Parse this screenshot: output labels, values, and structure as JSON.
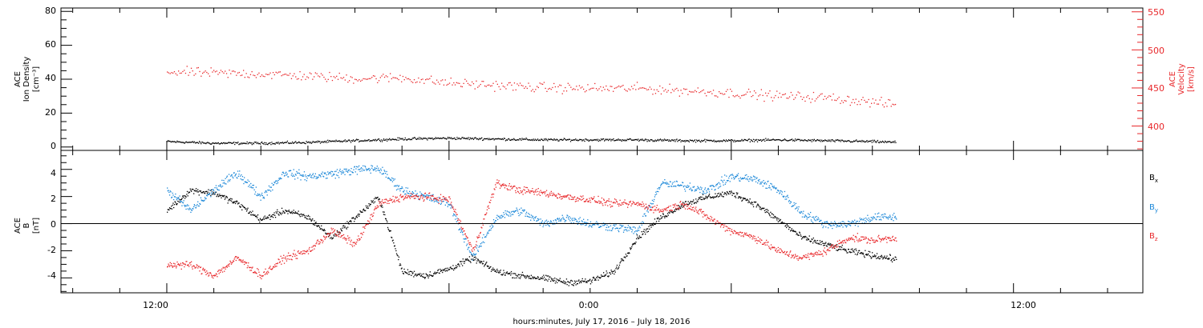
{
  "chart_data": [
    {
      "type": "scatter",
      "panel": "plasma",
      "ylabel_lines": [
        "ACE",
        "Ion Density",
        "[cm⁻³]"
      ],
      "ylabel2_lines": [
        "ACE",
        "Velocity",
        "[km/s]"
      ],
      "ylim": [
        -2,
        82
      ],
      "y_ticks": [
        "0",
        "20",
        "40",
        "60",
        "80"
      ],
      "y2lim": [
        368,
        555
      ],
      "y2_ticks": [
        "400",
        "450",
        "500",
        "550"
      ],
      "grid": false,
      "series": [
        {
          "axis": "left",
          "color": "#000000",
          "x": [
            0,
            2,
            4,
            6,
            8,
            10,
            12,
            14,
            16,
            18,
            20,
            22,
            24,
            26,
            28,
            30,
            31
          ],
          "y": [
            3.5,
            2.5,
            2.5,
            3.0,
            4.0,
            5.0,
            5.5,
            5.0,
            4.5,
            4.5,
            4.5,
            4.0,
            4.0,
            4.5,
            4.0,
            3.5,
            3.0
          ]
        },
        {
          "axis": "right",
          "color": "#e8272a",
          "x": [
            0,
            2,
            4,
            6,
            8,
            10,
            12,
            14,
            16,
            18,
            20,
            22,
            24,
            26,
            28,
            30,
            31
          ],
          "y": [
            472,
            470,
            469,
            466,
            463,
            464,
            457,
            454,
            451,
            450,
            450,
            447,
            444,
            440,
            438,
            432,
            428
          ]
        }
      ]
    },
    {
      "type": "scatter",
      "panel": "magnetic-field",
      "ylabel_lines": [
        "ACE",
        "B",
        "[nT]"
      ],
      "ylim": [
        -5.1,
        5.4
      ],
      "y_ticks": [
        "-4",
        "-2",
        "0",
        "2",
        "4"
      ],
      "zero_line": true,
      "legend_position": "right",
      "grid": false,
      "series": [
        {
          "name": "Bx",
          "color": "#000000",
          "x": [
            0,
            1,
            2,
            3,
            4,
            5,
            6,
            7,
            8,
            9,
            10,
            11,
            12,
            13,
            14,
            15,
            16,
            17,
            18,
            19,
            20,
            21,
            22,
            23,
            24,
            25,
            26,
            27,
            28,
            29,
            30,
            31
          ],
          "y": [
            1.0,
            2.5,
            2.3,
            1.5,
            0.3,
            1.0,
            0.5,
            -1.0,
            0.5,
            2.0,
            -3.5,
            -3.8,
            -3.3,
            -2.5,
            -3.5,
            -3.8,
            -4.0,
            -4.3,
            -4.2,
            -3.5,
            -1.0,
            0.5,
            1.5,
            2.0,
            2.3,
            1.5,
            0.3,
            -1.0,
            -1.5,
            -2.0,
            -2.3,
            -2.6
          ]
        },
        {
          "name": "By",
          "color": "#1a87d8",
          "x": [
            0,
            1,
            2,
            3,
            4,
            5,
            6,
            7,
            8,
            9,
            10,
            11,
            12,
            13,
            14,
            15,
            16,
            17,
            18,
            19,
            20,
            21,
            22,
            23,
            24,
            25,
            26,
            27,
            28,
            29,
            30,
            31
          ],
          "y": [
            2.5,
            1.0,
            2.5,
            3.8,
            2.0,
            3.8,
            3.5,
            3.7,
            4.0,
            4.1,
            2.5,
            2.0,
            1.5,
            -2.5,
            0.5,
            1.0,
            0.0,
            0.5,
            0.0,
            -0.2,
            -0.5,
            3.0,
            2.8,
            2.5,
            3.5,
            3.3,
            2.5,
            0.8,
            0.0,
            0.0,
            0.5,
            0.5
          ]
        },
        {
          "name": "Bz",
          "color": "#e8272a",
          "x": [
            0,
            1,
            2,
            3,
            4,
            5,
            6,
            7,
            8,
            9,
            10,
            11,
            12,
            13,
            14,
            15,
            16,
            17,
            18,
            19,
            20,
            21,
            22,
            23,
            24,
            25,
            26,
            27,
            28,
            29,
            30,
            31
          ],
          "y": [
            -3.0,
            -3.0,
            -3.8,
            -2.5,
            -3.8,
            -2.5,
            -2.0,
            -0.5,
            -1.5,
            1.5,
            2.0,
            2.0,
            1.8,
            -2.0,
            3.0,
            2.5,
            2.3,
            2.0,
            1.8,
            1.5,
            1.5,
            1.0,
            1.5,
            0.5,
            -0.5,
            -1.0,
            -2.0,
            -2.5,
            -2.0,
            -1.0,
            -1.2,
            -1.0
          ]
        }
      ]
    }
  ],
  "x_axis": {
    "range_hours": [
      -4.5,
      41.5
    ],
    "tick_labels": [
      "12:00",
      "0:00",
      "12:00"
    ],
    "tick_hours": [
      0,
      12,
      24,
      36
    ],
    "xlabel": "hours:minutes, July 17, 2016 – July 18, 2016"
  },
  "legend": {
    "bx": "B",
    "bx_sub": "x",
    "by": "B",
    "by_sub": "y",
    "bz": "B",
    "bz_sub": "z"
  },
  "colors": {
    "black": "#000000",
    "red": "#e8272a",
    "blue": "#1a87d8"
  }
}
